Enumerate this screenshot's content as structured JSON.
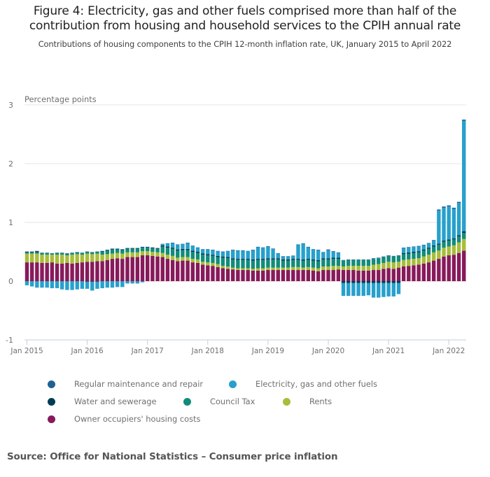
{
  "title": "Figure 4: Electricity, gas and other fuels comprised more than half of the contribution from housing and household services to the CPIH annual rate",
  "title_line1": "Figure 4: Electricity, gas and other fuels comprised more than half of the",
  "title_line2": "contribution from housing and household services to the CPIH annual rate",
  "subtitle": "Contributions of housing components to the CPIH 12-month inflation rate, UK, January 2015 to April 2022",
  "source": "Source: Office for National Statistics – Consumer price inflation",
  "chart_data": {
    "type": "bar",
    "stacked": true,
    "title": "Figure 4: Electricity, gas and other fuels comprised more than half of the contribution from housing and household services to the CPIH annual rate",
    "subtitle": "Contributions of housing components to the CPIH 12-month inflation rate, UK, January 2015 to April 2022",
    "xlabel": "",
    "ylabel": "Percentage points",
    "ylim": [
      -1,
      3
    ],
    "yticks": [
      -1,
      0,
      1,
      2,
      3
    ],
    "xtick_labels": [
      "Jan 2015",
      "Jan 2016",
      "Jan 2017",
      "Jan 2018",
      "Jan 2019",
      "Jan 2020",
      "Jan 2021",
      "Jan 2022"
    ],
    "x_start": "Jan 2015",
    "x_end": "Apr 2022",
    "n_months": 88,
    "grid": true,
    "legend_position": "bottom",
    "series": [
      {
        "name": "Owner occupiers' housing costs",
        "color": "#871a5b",
        "values": [
          0.32,
          0.32,
          0.32,
          0.31,
          0.31,
          0.32,
          0.3,
          0.3,
          0.31,
          0.3,
          0.31,
          0.32,
          0.33,
          0.33,
          0.34,
          0.34,
          0.36,
          0.38,
          0.39,
          0.38,
          0.41,
          0.41,
          0.41,
          0.44,
          0.44,
          0.43,
          0.42,
          0.41,
          0.38,
          0.36,
          0.34,
          0.35,
          0.35,
          0.32,
          0.31,
          0.28,
          0.27,
          0.26,
          0.24,
          0.22,
          0.21,
          0.2,
          0.19,
          0.19,
          0.19,
          0.18,
          0.18,
          0.18,
          0.19,
          0.19,
          0.19,
          0.19,
          0.19,
          0.19,
          0.19,
          0.19,
          0.19,
          0.18,
          0.17,
          0.19,
          0.19,
          0.19,
          0.2,
          0.19,
          0.19,
          0.19,
          0.18,
          0.18,
          0.18,
          0.19,
          0.19,
          0.21,
          0.22,
          0.21,
          0.23,
          0.25,
          0.26,
          0.27,
          0.28,
          0.3,
          0.32,
          0.35,
          0.38,
          0.42,
          0.44,
          0.45,
          0.48,
          0.52
        ]
      },
      {
        "name": "Rents",
        "color": "#a8bd3a",
        "values": [
          0.15,
          0.15,
          0.15,
          0.14,
          0.14,
          0.13,
          0.15,
          0.15,
          0.13,
          0.15,
          0.15,
          0.13,
          0.14,
          0.13,
          0.13,
          0.11,
          0.1,
          0.09,
          0.09,
          0.09,
          0.08,
          0.08,
          0.08,
          0.07,
          0.07,
          0.07,
          0.07,
          0.07,
          0.07,
          0.07,
          0.06,
          0.06,
          0.06,
          0.06,
          0.06,
          0.05,
          0.05,
          0.05,
          0.05,
          0.04,
          0.04,
          0.03,
          0.03,
          0.03,
          0.03,
          0.03,
          0.04,
          0.04,
          0.04,
          0.04,
          0.04,
          0.04,
          0.04,
          0.05,
          0.05,
          0.04,
          0.05,
          0.05,
          0.05,
          0.06,
          0.06,
          0.07,
          0.06,
          0.06,
          0.07,
          0.07,
          0.08,
          0.08,
          0.08,
          0.09,
          0.1,
          0.1,
          0.11,
          0.11,
          0.1,
          0.11,
          0.11,
          0.11,
          0.11,
          0.12,
          0.13,
          0.14,
          0.14,
          0.15,
          0.15,
          0.16,
          0.18,
          0.2
        ]
      },
      {
        "name": "Council Tax",
        "color": "#118c7b",
        "values": [
          0.02,
          0.02,
          0.02,
          0.03,
          0.03,
          0.02,
          0.03,
          0.03,
          0.03,
          0.03,
          0.03,
          0.03,
          0.03,
          0.03,
          0.03,
          0.05,
          0.06,
          0.07,
          0.06,
          0.06,
          0.06,
          0.06,
          0.06,
          0.06,
          0.06,
          0.06,
          0.06,
          0.11,
          0.12,
          0.12,
          0.12,
          0.12,
          0.12,
          0.12,
          0.11,
          0.12,
          0.12,
          0.12,
          0.12,
          0.14,
          0.14,
          0.14,
          0.14,
          0.14,
          0.14,
          0.14,
          0.14,
          0.14,
          0.14,
          0.14,
          0.14,
          0.12,
          0.12,
          0.12,
          0.12,
          0.12,
          0.12,
          0.12,
          0.12,
          0.12,
          0.12,
          0.12,
          0.12,
          0.1,
          0.1,
          0.1,
          0.1,
          0.1,
          0.1,
          0.1,
          0.1,
          0.1,
          0.1,
          0.1,
          0.1,
          0.1,
          0.1,
          0.1,
          0.1,
          0.1,
          0.1,
          0.1,
          0.1,
          0.1,
          0.1,
          0.1,
          0.1,
          0.1
        ]
      },
      {
        "name": "Water and sewerage",
        "color": "#003c57",
        "values": [
          0.01,
          0.01,
          0.02,
          0.0,
          0.0,
          0.0,
          0.0,
          0.0,
          0.0,
          0.0,
          0.0,
          0.0,
          -0.01,
          -0.01,
          -0.01,
          0.01,
          0.01,
          0.01,
          0.01,
          0.01,
          0.01,
          0.01,
          0.01,
          0.01,
          0.01,
          0.01,
          0.01,
          0.02,
          0.02,
          0.02,
          0.02,
          0.02,
          0.02,
          0.02,
          0.02,
          0.02,
          0.02,
          0.02,
          0.02,
          0.02,
          0.02,
          0.02,
          0.02,
          0.02,
          0.02,
          0.02,
          0.02,
          0.02,
          0.02,
          0.02,
          0.02,
          0.02,
          0.02,
          0.02,
          0.02,
          0.02,
          0.02,
          0.02,
          0.02,
          0.02,
          0.02,
          0.02,
          0.02,
          -0.03,
          -0.03,
          -0.03,
          -0.03,
          -0.03,
          -0.03,
          -0.03,
          -0.03,
          -0.03,
          -0.03,
          -0.03,
          -0.03,
          0.02,
          0.02,
          0.02,
          0.02,
          0.02,
          0.02,
          0.02,
          0.02,
          0.02,
          0.02,
          0.02,
          0.02,
          0.03
        ]
      },
      {
        "name": "Electricity, gas and other fuels",
        "color": "#27a0cc",
        "values": [
          -0.07,
          -0.09,
          -0.11,
          -0.11,
          -0.11,
          -0.12,
          -0.12,
          -0.14,
          -0.15,
          -0.15,
          -0.14,
          -0.13,
          -0.12,
          -0.15,
          -0.12,
          -0.12,
          -0.11,
          -0.11,
          -0.1,
          -0.1,
          -0.04,
          -0.04,
          -0.04,
          -0.02,
          0.0,
          0.0,
          0.0,
          0.02,
          0.05,
          0.08,
          0.08,
          0.08,
          0.1,
          0.08,
          0.07,
          0.07,
          0.08,
          0.08,
          0.08,
          0.08,
          0.1,
          0.14,
          0.14,
          0.14,
          0.13,
          0.16,
          0.2,
          0.19,
          0.2,
          0.16,
          0.08,
          0.05,
          0.05,
          0.05,
          0.24,
          0.27,
          0.2,
          0.17,
          0.17,
          0.1,
          0.14,
          0.1,
          0.08,
          -0.22,
          -0.22,
          -0.22,
          -0.22,
          -0.22,
          -0.21,
          -0.25,
          -0.25,
          -0.24,
          -0.23,
          -0.23,
          -0.19,
          0.08,
          0.08,
          0.08,
          0.08,
          0.07,
          0.07,
          0.08,
          0.56,
          0.56,
          0.56,
          0.5,
          0.55,
          1.88
        ]
      },
      {
        "name": "Regular maintenance and repair",
        "color": "#206095",
        "values": [
          0.005,
          0.005,
          0.005,
          0.005,
          0.005,
          0.005,
          0.005,
          0.005,
          0.005,
          0.005,
          0.005,
          0.005,
          0.005,
          0.005,
          0.005,
          0.005,
          0.005,
          0.005,
          0.005,
          0.005,
          0.005,
          0.005,
          0.005,
          0.005,
          0.005,
          0.005,
          0.005,
          0.005,
          0.005,
          0.005,
          0.005,
          0.005,
          0.005,
          0.005,
          0.005,
          0.005,
          0.005,
          0.005,
          0.005,
          0.005,
          0.005,
          0.005,
          0.005,
          0.005,
          0.005,
          0.005,
          0.005,
          0.005,
          0.005,
          0.005,
          0.005,
          0.005,
          0.005,
          0.005,
          0.005,
          0.005,
          0.005,
          0.005,
          0.005,
          0.005,
          0.01,
          0.01,
          0.01,
          0.01,
          0.01,
          0.01,
          0.01,
          0.01,
          0.01,
          0.01,
          0.01,
          0.01,
          0.01,
          0.01,
          0.01,
          0.01,
          0.01,
          0.01,
          0.01,
          0.01,
          0.01,
          0.01,
          0.02,
          0.02,
          0.02,
          0.02,
          0.02,
          0.02
        ]
      }
    ],
    "legend": [
      {
        "label": "Regular maintenance and repair",
        "color": "#206095"
      },
      {
        "label": "Electricity, gas and other fuels",
        "color": "#27a0cc"
      },
      {
        "label": "Water and sewerage",
        "color": "#003c57"
      },
      {
        "label": "Council Tax",
        "color": "#118c7b"
      },
      {
        "label": "Rents",
        "color": "#a8bd3a"
      },
      {
        "label": "Owner occupiers' housing costs",
        "color": "#871a5b"
      }
    ]
  }
}
